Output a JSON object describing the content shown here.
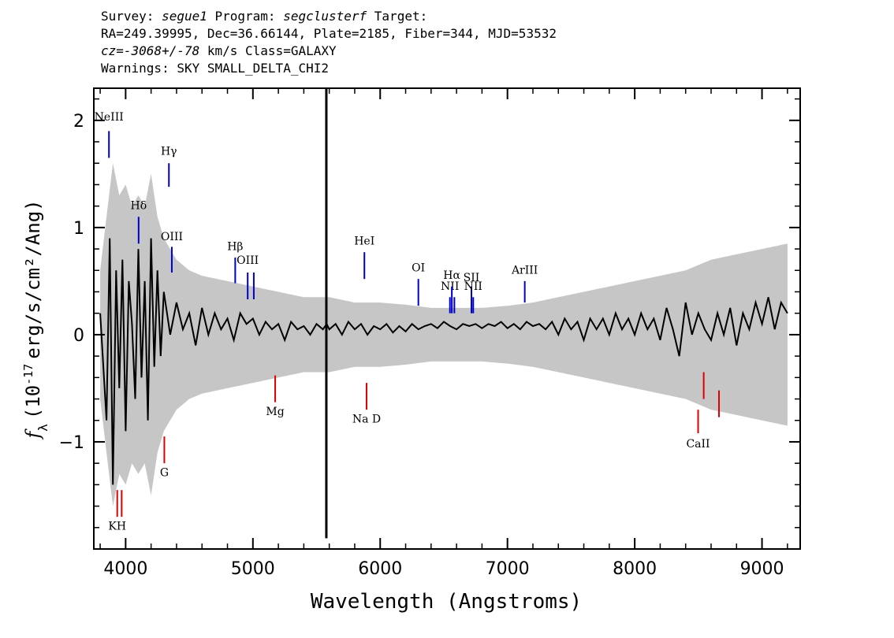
{
  "header": {
    "survey_label": "Survey: ",
    "survey": "segue1",
    "program_label": " Program: ",
    "program": "segclusterf",
    "target_label": " Target:",
    "line2": "RA=249.39995, Dec=36.66144, Plate=2185, Fiber=344, MJD=53532",
    "cz_label": "cz=",
    "cz_value": "-3068+/-78",
    "cz_units": " km/s Class=GALAXY",
    "warnings": "Warnings: SKY SMALL_DELTA_CHI2"
  },
  "chart_data": {
    "type": "line",
    "xlabel": "Wavelength (Angstroms)",
    "ylabel": "f_λ (10^-17 erg/s/cm²/Ang)",
    "xlim": [
      3750,
      9300
    ],
    "ylim": [
      -2.0,
      2.3
    ],
    "xticks": [
      4000,
      5000,
      6000,
      7000,
      8000,
      9000
    ],
    "xtick_labels": [
      "4000",
      "5000",
      "6000",
      "7000",
      "8000",
      "9000"
    ],
    "yticks": [
      -1,
      0,
      1,
      2
    ],
    "ytick_labels": [
      "−1",
      "0",
      "1",
      "2"
    ],
    "series": [
      {
        "role": "error-envelope",
        "color": "#c0c0c0",
        "points": [
          [
            3800,
            0.6
          ],
          [
            3850,
            1.1
          ],
          [
            3900,
            1.6
          ],
          [
            3950,
            1.3
          ],
          [
            4000,
            1.4
          ],
          [
            4050,
            1.2
          ],
          [
            4100,
            1.3
          ],
          [
            4150,
            1.2
          ],
          [
            4200,
            1.5
          ],
          [
            4250,
            1.1
          ],
          [
            4300,
            0.9
          ],
          [
            4400,
            0.7
          ],
          [
            4500,
            0.6
          ],
          [
            4600,
            0.55
          ],
          [
            4800,
            0.5
          ],
          [
            5000,
            0.45
          ],
          [
            5200,
            0.4
          ],
          [
            5400,
            0.35
          ],
          [
            5600,
            0.35
          ],
          [
            5800,
            0.3
          ],
          [
            6000,
            0.3
          ],
          [
            6200,
            0.28
          ],
          [
            6400,
            0.25
          ],
          [
            6600,
            0.25
          ],
          [
            6800,
            0.25
          ],
          [
            7000,
            0.27
          ],
          [
            7200,
            0.3
          ],
          [
            7400,
            0.35
          ],
          [
            7600,
            0.4
          ],
          [
            7800,
            0.45
          ],
          [
            8000,
            0.5
          ],
          [
            8200,
            0.55
          ],
          [
            8400,
            0.6
          ],
          [
            8600,
            0.7
          ],
          [
            8800,
            0.75
          ],
          [
            9000,
            0.8
          ],
          [
            9200,
            0.85
          ]
        ]
      },
      {
        "role": "flux",
        "color": "#000000",
        "points": [
          [
            3800,
            0.2
          ],
          [
            3850,
            -0.8
          ],
          [
            3875,
            0.9
          ],
          [
            3900,
            -1.4
          ],
          [
            3925,
            0.6
          ],
          [
            3950,
            -0.5
          ],
          [
            3975,
            0.7
          ],
          [
            4000,
            -0.9
          ],
          [
            4025,
            0.5
          ],
          [
            4050,
            0.1
          ],
          [
            4075,
            -0.6
          ],
          [
            4100,
            0.8
          ],
          [
            4125,
            -0.4
          ],
          [
            4150,
            0.5
          ],
          [
            4175,
            -0.8
          ],
          [
            4200,
            0.9
          ],
          [
            4225,
            -0.3
          ],
          [
            4250,
            0.6
          ],
          [
            4275,
            -0.2
          ],
          [
            4300,
            0.4
          ],
          [
            4350,
            0.0
          ],
          [
            4400,
            0.3
          ],
          [
            4450,
            0.05
          ],
          [
            4500,
            0.2
          ],
          [
            4550,
            -0.1
          ],
          [
            4600,
            0.25
          ],
          [
            4650,
            0.0
          ],
          [
            4700,
            0.2
          ],
          [
            4750,
            0.05
          ],
          [
            4800,
            0.15
          ],
          [
            4850,
            -0.05
          ],
          [
            4900,
            0.2
          ],
          [
            4950,
            0.1
          ],
          [
            5000,
            0.15
          ],
          [
            5050,
            0.0
          ],
          [
            5100,
            0.12
          ],
          [
            5150,
            0.05
          ],
          [
            5200,
            0.1
          ],
          [
            5250,
            -0.05
          ],
          [
            5300,
            0.12
          ],
          [
            5350,
            0.05
          ],
          [
            5400,
            0.08
          ],
          [
            5450,
            0.0
          ],
          [
            5500,
            0.1
          ],
          [
            5550,
            0.05
          ],
          [
            5580,
            0.1
          ],
          [
            5600,
            0.05
          ],
          [
            5650,
            0.1
          ],
          [
            5700,
            0.0
          ],
          [
            5750,
            0.12
          ],
          [
            5800,
            0.05
          ],
          [
            5850,
            0.1
          ],
          [
            5900,
            0.0
          ],
          [
            5950,
            0.08
          ],
          [
            6000,
            0.05
          ],
          [
            6050,
            0.1
          ],
          [
            6100,
            0.02
          ],
          [
            6150,
            0.08
          ],
          [
            6200,
            0.03
          ],
          [
            6250,
            0.1
          ],
          [
            6300,
            0.05
          ],
          [
            6350,
            0.08
          ],
          [
            6400,
            0.1
          ],
          [
            6450,
            0.06
          ],
          [
            6500,
            0.12
          ],
          [
            6550,
            0.08
          ],
          [
            6600,
            0.05
          ],
          [
            6650,
            0.1
          ],
          [
            6700,
            0.08
          ],
          [
            6750,
            0.1
          ],
          [
            6800,
            0.06
          ],
          [
            6850,
            0.1
          ],
          [
            6900,
            0.08
          ],
          [
            6950,
            0.12
          ],
          [
            7000,
            0.06
          ],
          [
            7050,
            0.1
          ],
          [
            7100,
            0.05
          ],
          [
            7150,
            0.12
          ],
          [
            7200,
            0.08
          ],
          [
            7250,
            0.1
          ],
          [
            7300,
            0.05
          ],
          [
            7350,
            0.12
          ],
          [
            7400,
            0.0
          ],
          [
            7450,
            0.15
          ],
          [
            7500,
            0.05
          ],
          [
            7550,
            0.12
          ],
          [
            7600,
            -0.05
          ],
          [
            7650,
            0.15
          ],
          [
            7700,
            0.05
          ],
          [
            7750,
            0.15
          ],
          [
            7800,
            0.0
          ],
          [
            7850,
            0.2
          ],
          [
            7900,
            0.05
          ],
          [
            7950,
            0.15
          ],
          [
            8000,
            0.0
          ],
          [
            8050,
            0.2
          ],
          [
            8100,
            0.05
          ],
          [
            8150,
            0.15
          ],
          [
            8200,
            -0.05
          ],
          [
            8250,
            0.25
          ],
          [
            8300,
            0.05
          ],
          [
            8350,
            -0.2
          ],
          [
            8400,
            0.3
          ],
          [
            8450,
            0.0
          ],
          [
            8500,
            0.2
          ],
          [
            8550,
            0.05
          ],
          [
            8600,
            -0.05
          ],
          [
            8650,
            0.2
          ],
          [
            8700,
            0.0
          ],
          [
            8750,
            0.25
          ],
          [
            8800,
            -0.1
          ],
          [
            8850,
            0.2
          ],
          [
            8900,
            0.05
          ],
          [
            8950,
            0.3
          ],
          [
            9000,
            0.1
          ],
          [
            9050,
            0.35
          ],
          [
            9100,
            0.05
          ],
          [
            9150,
            0.3
          ],
          [
            9200,
            0.2
          ]
        ]
      },
      {
        "role": "sky-line-spike",
        "color": "#000000",
        "x": 5577,
        "y_range": [
          -1.9,
          2.3
        ]
      }
    ],
    "line_markers": [
      {
        "label": "NeIII",
        "color": "#0000cc",
        "x": 3869,
        "y_top": 1.9,
        "y_bottom": 1.65,
        "label_y": 2.0
      },
      {
        "label": "Hγ",
        "color": "#0000cc",
        "x": 4340,
        "y_top": 1.6,
        "y_bottom": 1.38,
        "label_y": 1.68
      },
      {
        "label": "Hδ",
        "color": "#0000cc",
        "x": 4102,
        "y_top": 1.1,
        "y_bottom": 0.85,
        "label_y": 1.17
      },
      {
        "label": "OIII",
        "color": "#0000cc",
        "x": 4363,
        "y_top": 0.82,
        "y_bottom": 0.58,
        "label_y": 0.88
      },
      {
        "label": "Hβ",
        "color": "#0000cc",
        "x": 4861,
        "y_top": 0.72,
        "y_bottom": 0.48,
        "label_y": 0.79
      },
      {
        "label": "OIII",
        "color": "#0000cc",
        "x": 4959,
        "y_top": 0.58,
        "y_bottom": 0.33,
        "label_y": 0.66
      },
      {
        "label": "",
        "color": "#0000cc",
        "x": 5007,
        "y_top": 0.58,
        "y_bottom": 0.33,
        "label_y": 0.66
      },
      {
        "label": "HeI",
        "color": "#0000cc",
        "x": 5876,
        "y_top": 0.77,
        "y_bottom": 0.52,
        "label_y": 0.84
      },
      {
        "label": "OI",
        "color": "#0000cc",
        "x": 6300,
        "y_top": 0.52,
        "y_bottom": 0.27,
        "label_y": 0.59
      },
      {
        "label": "NII",
        "color": "#0000cc",
        "x": 6548,
        "y_top": 0.35,
        "y_bottom": 0.2,
        "label_y": 0.42
      },
      {
        "label": "Hα",
        "color": "#0000cc",
        "x": 6563,
        "y_top": 0.45,
        "y_bottom": 0.2,
        "label_y": 0.52
      },
      {
        "label": "",
        "color": "#0000cc",
        "x": 6583,
        "y_top": 0.35,
        "y_bottom": 0.2,
        "label_y": 0.42
      },
      {
        "label": "SII",
        "color": "#0000cc",
        "x": 6717,
        "y_top": 0.45,
        "y_bottom": 0.2,
        "label_y": 0.5
      },
      {
        "label": "NII",
        "color": "#0000cc",
        "x": 6731,
        "y_top": 0.35,
        "y_bottom": 0.2,
        "label_y": 0.42
      },
      {
        "label": "ArIII",
        "color": "#0000cc",
        "x": 7136,
        "y_top": 0.5,
        "y_bottom": 0.3,
        "label_y": 0.57
      },
      {
        "label": "KH",
        "color": "#dd0000",
        "x": 3934,
        "y_top": -1.45,
        "y_bottom": -1.7,
        "label_y": -1.82
      },
      {
        "label": "",
        "color": "#dd0000",
        "x": 3969,
        "y_top": -1.45,
        "y_bottom": -1.7,
        "label_y": -1.82
      },
      {
        "label": "G",
        "color": "#dd0000",
        "x": 4304,
        "y_top": -0.95,
        "y_bottom": -1.2,
        "label_y": -1.32
      },
      {
        "label": "Mg",
        "color": "#dd0000",
        "x": 5175,
        "y_top": -0.38,
        "y_bottom": -0.63,
        "label_y": -0.75
      },
      {
        "label": "Na  D",
        "color": "#dd0000",
        "x": 5893,
        "y_top": -0.45,
        "y_bottom": -0.7,
        "label_y": -0.82
      },
      {
        "label": "CaII",
        "color": "#dd0000",
        "x": 8498,
        "y_top": -0.7,
        "y_bottom": -0.92,
        "label_y": -1.05
      },
      {
        "label": "",
        "color": "#dd0000",
        "x": 8542,
        "y_top": -0.35,
        "y_bottom": -0.6,
        "label_y": -1.05
      },
      {
        "label": "",
        "color": "#dd0000",
        "x": 8662,
        "y_top": -0.52,
        "y_bottom": -0.77,
        "label_y": -1.05
      }
    ]
  }
}
